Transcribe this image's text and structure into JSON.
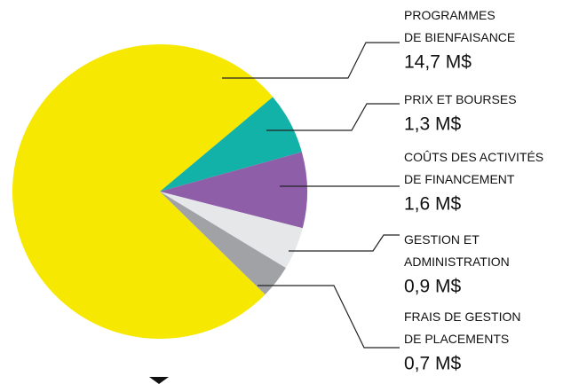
{
  "chart_data": {
    "type": "pie",
    "categories": [
      "PROGRAMMES\nDE BIENFAISANCE",
      "PRIX ET BOURSES",
      "COÛTS DES ACTIVITÉS\nDE FINANCEMENT",
      "GESTION ET\nADMINISTRATION",
      "FRAIS DE GESTION\nDE PLACEMENTS"
    ],
    "values": [
      14.7,
      1.3,
      1.6,
      0.9,
      0.7
    ],
    "value_labels": [
      "14,7 M$",
      "1,3 M$",
      "1,6 M$",
      "0,9 M$",
      "0,7 M$"
    ],
    "colors": [
      "#f6e800",
      "#12b2a8",
      "#8e5fa8",
      "#e6e7e9",
      "#a1a2a6"
    ]
  }
}
